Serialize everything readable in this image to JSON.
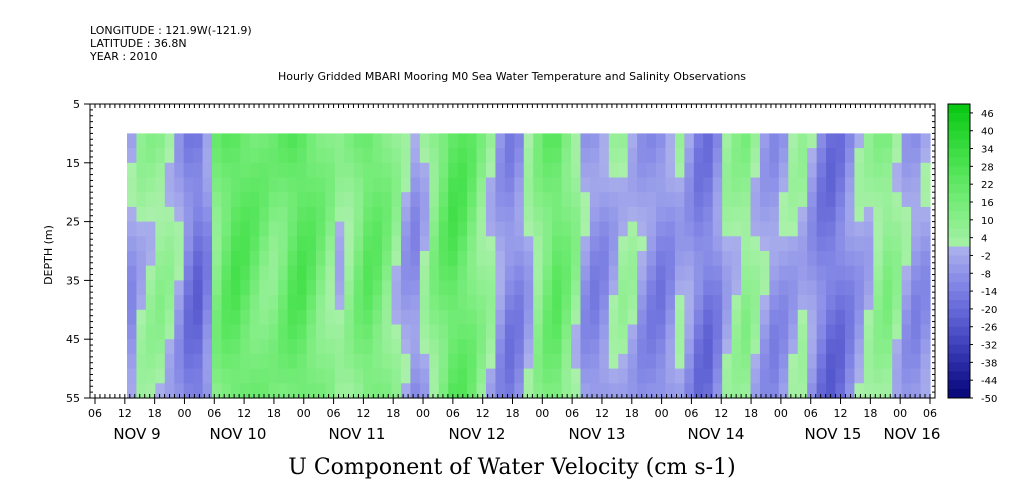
{
  "header": {
    "longitude": "LONGITUDE : 121.9W(-121.9)",
    "latitude": "LATITUDE : 36.8N",
    "year": "YEAR : 2010"
  },
  "chart_data": {
    "type": "heatmap",
    "title": "Hourly Gridded MBARI Mooring M0 Sea Water Temperature and Salinity Observations",
    "xlabel": "U Component of Water Velocity (cm s-1)",
    "ylabel": "DEPTH (m)",
    "y_ticks": [
      "5",
      "15",
      "25",
      "35",
      "45",
      "55"
    ],
    "ylim": [
      5,
      55
    ],
    "y_inverted": true,
    "data_depth_range": [
      10,
      55
    ],
    "x_hour_ticks": [
      "06",
      "12",
      "18",
      "00",
      "06",
      "12",
      "18",
      "00",
      "06",
      "12",
      "18",
      "00",
      "06",
      "12",
      "18",
      "00",
      "06",
      "12",
      "18",
      "00",
      "06",
      "12",
      "18",
      "00",
      "06",
      "12",
      "18",
      "00",
      "06"
    ],
    "x_day_labels": [
      "NOV  9",
      "NOV 10",
      "NOV 11",
      "NOV 12",
      "NOV 13",
      "NOV 14",
      "NOV 15",
      "NOV 16"
    ],
    "colorbar_labels": [
      "46",
      "40",
      "34",
      "28",
      "22",
      "16",
      "10",
      "4",
      "-2",
      "-8",
      "-14",
      "-20",
      "-26",
      "-32",
      "-38",
      "-44",
      "-50"
    ],
    "colorbar_range": [
      -50,
      49
    ],
    "column_profile_velocity": [
      -4,
      3,
      6,
      8,
      5,
      -2,
      -12,
      -16,
      -8,
      14,
      22,
      26,
      24,
      20,
      16,
      14,
      18,
      24,
      26,
      22,
      16,
      10,
      4,
      8,
      16,
      22,
      20,
      14,
      6,
      -2,
      -6,
      2,
      12,
      20,
      26,
      24,
      18,
      10,
      4,
      -4,
      -10,
      -8,
      0,
      10,
      18,
      22,
      16,
      8,
      -4,
      -8,
      -6,
      0,
      4,
      2,
      -4,
      -8,
      -10,
      -6,
      0,
      -4,
      -12,
      -14,
      -8,
      2,
      6,
      10,
      4,
      -2,
      -6,
      -4,
      0,
      2,
      -4,
      -12,
      -16,
      -14,
      -8,
      -2,
      2,
      8,
      12,
      6,
      -2,
      -6,
      -4
    ]
  }
}
